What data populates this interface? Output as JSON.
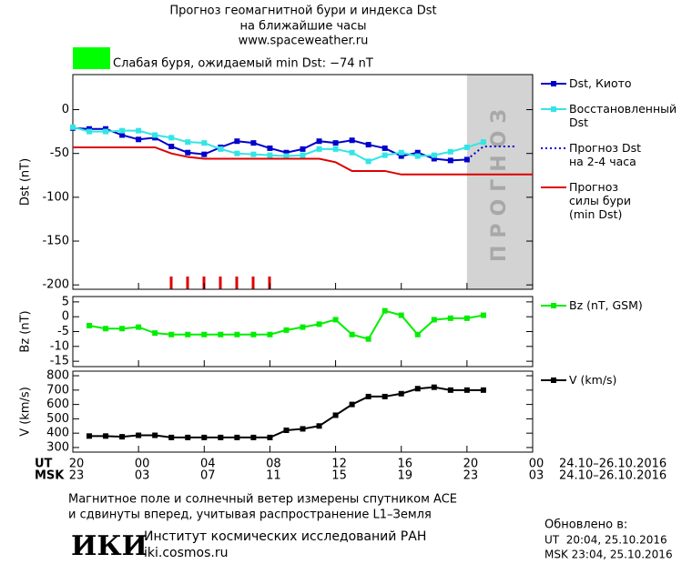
{
  "header": {
    "title": "Прогноз геомагнитной бури и индекса Dst",
    "subtitle": "на ближайшие часы",
    "url": "www.spaceweather.ru",
    "status_color": "#00ff00",
    "status": "Слабая буря, ожидаемый min Dst: −74 nT"
  },
  "chart_data": [
    {
      "type": "line",
      "y_label": "Dst (nT)",
      "ylim": [
        -205,
        40
      ],
      "yticks": [
        0,
        -50,
        -100,
        -150,
        -200
      ],
      "forecast_label": "ПРОГНОЗ",
      "forecast_span": [
        44,
        48
      ],
      "series": [
        {
          "name": "Dst, Киото",
          "color": "#0000cc",
          "marker": "square",
          "dash": false,
          "x": [
            20,
            21,
            22,
            23,
            24,
            25,
            26,
            27,
            28,
            29,
            30,
            31,
            32,
            33,
            34,
            35,
            36,
            37,
            38,
            39,
            40,
            41,
            42,
            43,
            44
          ],
          "values": [
            -21,
            -22,
            -22,
            -29,
            -34,
            -32,
            -42,
            -49,
            -51,
            -43,
            -36,
            -38,
            -44,
            -49,
            -45,
            -36,
            -38,
            -35,
            -40,
            -44,
            -53,
            -49,
            -56,
            -58,
            -57
          ]
        },
        {
          "name": "Восстановленный\nDst",
          "color": "#33e5e5",
          "marker": "square",
          "dash": false,
          "x": [
            20,
            21,
            22,
            23,
            24,
            25,
            26,
            27,
            28,
            29,
            30,
            31,
            32,
            33,
            34,
            35,
            36,
            37,
            38,
            39,
            40,
            41,
            42,
            43,
            44,
            45
          ],
          "values": [
            -20,
            -25,
            -25,
            -24,
            -24,
            -29,
            -32,
            -37,
            -38,
            -45,
            -50,
            -51,
            -52,
            -53,
            -52,
            -45,
            -45,
            -49,
            -59,
            -52,
            -49,
            -53,
            -52,
            -48,
            -43,
            -37
          ]
        },
        {
          "name": "Прогноз Dst\nна 2-4 часа",
          "color": "#0000cc",
          "marker": "none",
          "dash": true,
          "x": [
            44,
            45,
            47
          ],
          "values": [
            -57,
            -42,
            -42
          ]
        },
        {
          "name": "Прогноз\nсилы бури\n(min Dst)",
          "color": "#dd0000",
          "marker": "none",
          "dash": false,
          "x": [
            20,
            25,
            26,
            27,
            28,
            35,
            36,
            37,
            39,
            40,
            48
          ],
          "values": [
            -43,
            -43,
            -50,
            -54,
            -56,
            -56,
            -60,
            -70,
            -70,
            -74,
            -74
          ]
        }
      ]
    },
    {
      "type": "line",
      "y_label": "Bz (nT)",
      "ylim": [
        -16.8,
        6.8
      ],
      "yticks": [
        5,
        0,
        -5,
        -10,
        -15
      ],
      "series": [
        {
          "name": "Bz (nT, GSM)",
          "color": "#00ee00",
          "marker": "square",
          "dash": false,
          "x": [
            21,
            22,
            23,
            24,
            25,
            26,
            27,
            28,
            29,
            30,
            31,
            32,
            33,
            34,
            35,
            36,
            37,
            38,
            39,
            40,
            41,
            42,
            43,
            44,
            45
          ],
          "values": [
            -3,
            -4,
            -4,
            -3.5,
            -5.5,
            -6,
            -6,
            -6,
            -6,
            -6,
            -6,
            -6,
            -4.5,
            -3.5,
            -2.5,
            -1,
            -6,
            -7.5,
            2,
            0.5,
            -6,
            -1,
            -0.5,
            -0.5,
            0.5
          ]
        }
      ]
    },
    {
      "type": "line",
      "y_label": "V (km/s)",
      "ylim": [
        268,
        832
      ],
      "yticks": [
        800,
        700,
        600,
        500,
        400,
        300
      ],
      "xlim": [
        20,
        48
      ],
      "xticks": [
        20,
        {
          "value": 24,
          "label": "00"
        },
        {
          "value": 28,
          "label": "04"
        },
        {
          "value": 32,
          "label": "08"
        },
        {
          "value": 36,
          "label": "12"
        },
        {
          "value": 40,
          "label": "16"
        },
        {
          "value": 44,
          "label": "20"
        },
        {
          "value": 48,
          "label": "00"
        }
      ],
      "msk_ticks": [
        {
          "value": 20,
          "label": "23"
        },
        {
          "value": 24,
          "label": "03"
        },
        {
          "value": 28,
          "label": "07"
        },
        {
          "value": 32,
          "label": "11"
        },
        {
          "value": 36,
          "label": "15"
        },
        {
          "value": 40,
          "label": "19"
        },
        {
          "value": 44,
          "label": "23"
        },
        {
          "value": 48,
          "label": "03"
        }
      ],
      "ut_label": "UT",
      "msk_label": "MSK",
      "ut_dates": "24.10–26.10.2016",
      "msk_dates": "24.10–26.10.2016",
      "series": [
        {
          "name": "V (km/s)",
          "color": "#000000",
          "marker": "square",
          "dash": false,
          "x": [
            21,
            22,
            23,
            24,
            25,
            26,
            27,
            28,
            29,
            30,
            31,
            32,
            33,
            34,
            35,
            36,
            37,
            38,
            39,
            40,
            41,
            42,
            43,
            44,
            45
          ],
          "values": [
            380,
            380,
            375,
            385,
            385,
            370,
            370,
            370,
            370,
            370,
            370,
            370,
            420,
            430,
            450,
            525,
            600,
            655,
            655,
            675,
            710,
            720,
            700,
            700,
            700
          ]
        }
      ]
    }
  ],
  "footer": {
    "note_1": "Магнитное поле и солнечный ветер измерены спутником ACE",
    "note_2": "и сдвинуты вперед, учитывая распространение L1–Земля",
    "logo": "ИКИ",
    "institute": "Институт космических исследований РАН",
    "site": "iki.cosmos.ru",
    "updated": "Обновлено в:",
    "updated_ut": "UT  20:04, 25.10.2016",
    "updated_msk": "MSK 23:04, 25.10.2016"
  }
}
